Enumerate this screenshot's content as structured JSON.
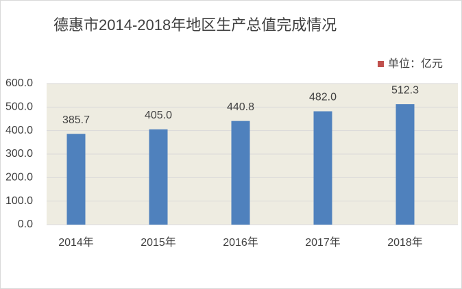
{
  "chart_data": {
    "type": "bar",
    "title": "德惠市2014-2018年地区生产总值完成情况",
    "categories": [
      "2014年",
      "2015年",
      "2016年",
      "2017年",
      "2018年"
    ],
    "series": [
      {
        "name": "单位：亿元",
        "color": "#4f81bd",
        "values": [
          385.7,
          405.0,
          440.8,
          482.0,
          512.3
        ],
        "value_labels": [
          "385.7",
          "405.0",
          "440.8",
          "482.0",
          "512.3"
        ]
      }
    ],
    "legend_color": "#c0504d",
    "legend": "top-right",
    "ylim": [
      0,
      600
    ],
    "yticks": [
      {
        "value": 0,
        "label": "0.0"
      },
      {
        "value": 100,
        "label": "100.0"
      },
      {
        "value": 200,
        "label": "200.0"
      },
      {
        "value": 300,
        "label": "300.0"
      },
      {
        "value": 400,
        "label": "400.0"
      },
      {
        "value": 500,
        "label": "500.0"
      },
      {
        "value": 600,
        "label": "600.0"
      }
    ],
    "grid": true
  }
}
